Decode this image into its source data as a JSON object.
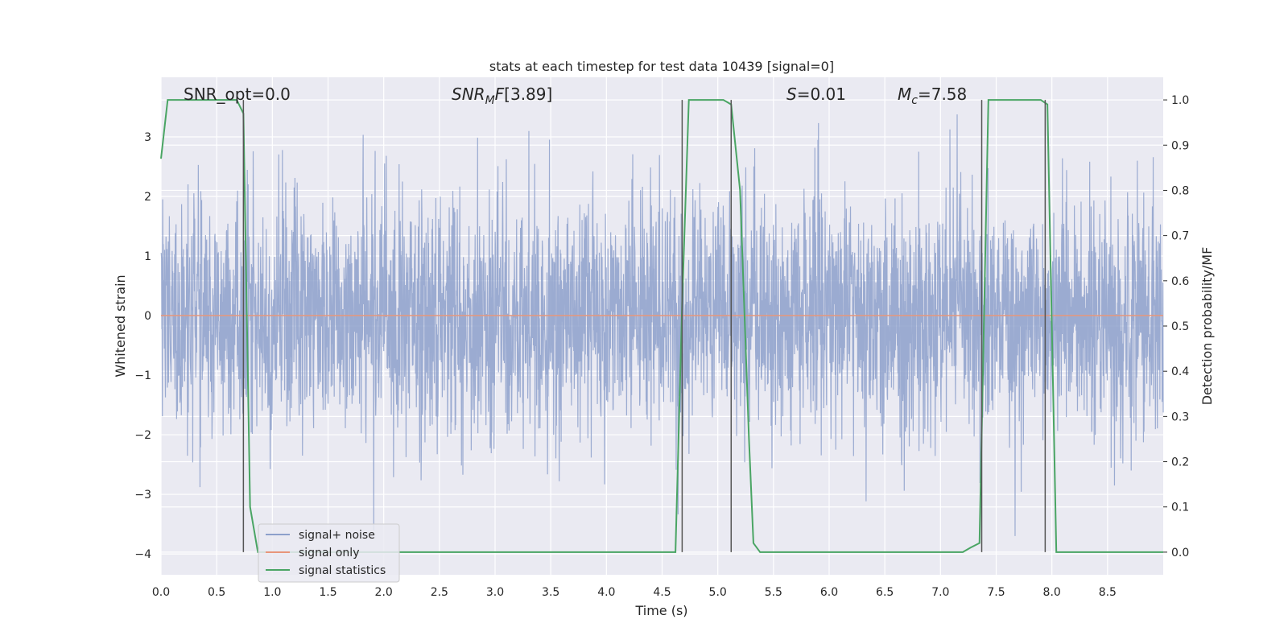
{
  "chart_data": {
    "type": "line",
    "title": "stats at each timestep for test data 10439 [signal=0]",
    "xlabel": "Time (s)",
    "ylabel": "Whitened strain",
    "y2label": "Detection probability/MF",
    "xlim": [
      0.0,
      9.0
    ],
    "ylim": [
      -4.35,
      4.0
    ],
    "y2lim": [
      -0.05,
      1.05
    ],
    "x_ticks": [
      "0.0",
      "0.5",
      "1.0",
      "1.5",
      "2.0",
      "2.5",
      "3.0",
      "3.5",
      "4.0",
      "4.5",
      "5.0",
      "5.5",
      "6.0",
      "6.5",
      "7.0",
      "7.5",
      "8.0",
      "8.5"
    ],
    "y_ticks": [
      "3",
      "2",
      "1",
      "0",
      "−1",
      "−2",
      "−3",
      "−4"
    ],
    "y2_ticks": [
      "1.0",
      "0.9",
      "0.8",
      "0.7",
      "0.6",
      "0.5",
      "0.4",
      "0.3",
      "0.2",
      "0.1",
      "0.0"
    ],
    "grid": true,
    "legend_placement": "lower-left",
    "annotations": {
      "snr_opt": "SNR_opt=0.0",
      "snr_mf": "[3.89]",
      "s": "=0.01",
      "mc": "=7.58"
    },
    "series": [
      {
        "name": "signal+ noise",
        "axis": "left",
        "color": "#8da0cb",
        "description_note": "dense whitened noise, sample amplitude ~N(0,1), extremes about ±3.5",
        "y_range_observed": [
          -3.7,
          3.5
        ]
      },
      {
        "name": "signal only",
        "axis": "left",
        "color": "#e8967a",
        "x": [
          0.0,
          9.0
        ],
        "y": [
          0.0,
          0.0
        ]
      },
      {
        "name": "signal statistics",
        "axis": "right",
        "color": "#4aa564",
        "x": [
          0.0,
          0.06,
          0.1,
          0.2,
          0.3,
          0.4,
          0.5,
          0.6,
          0.68,
          0.74,
          0.8,
          0.87,
          0.95,
          1.0,
          1.5,
          2.0,
          2.5,
          3.0,
          3.5,
          4.0,
          4.5,
          4.62,
          4.68,
          4.74,
          4.8,
          4.9,
          5.0,
          5.05,
          5.12,
          5.2,
          5.28,
          5.32,
          5.38,
          5.5,
          6.0,
          6.5,
          7.0,
          7.2,
          7.27,
          7.35,
          7.43,
          7.5,
          7.6,
          7.7,
          7.8,
          7.9,
          7.96,
          8.04,
          8.1,
          8.5,
          9.0
        ],
        "y": [
          0.87,
          1.0,
          1.0,
          1.0,
          1.0,
          1.0,
          1.0,
          1.0,
          1.0,
          0.97,
          0.1,
          0.0,
          0.0,
          0.0,
          0.0,
          0.0,
          0.0,
          0.0,
          0.0,
          0.0,
          0.0,
          0.0,
          0.55,
          1.0,
          1.0,
          1.0,
          1.0,
          1.0,
          0.99,
          0.8,
          0.25,
          0.02,
          0.0,
          0.0,
          0.0,
          0.0,
          0.0,
          0.0,
          0.01,
          0.02,
          1.0,
          1.0,
          1.0,
          1.0,
          1.0,
          1.0,
          0.99,
          0.0,
          0.0,
          0.0,
          0.0
        ]
      }
    ],
    "vertical_markers": {
      "color": "#555555",
      "x": [
        0.74,
        4.68,
        5.12,
        7.37,
        7.94
      ]
    }
  }
}
